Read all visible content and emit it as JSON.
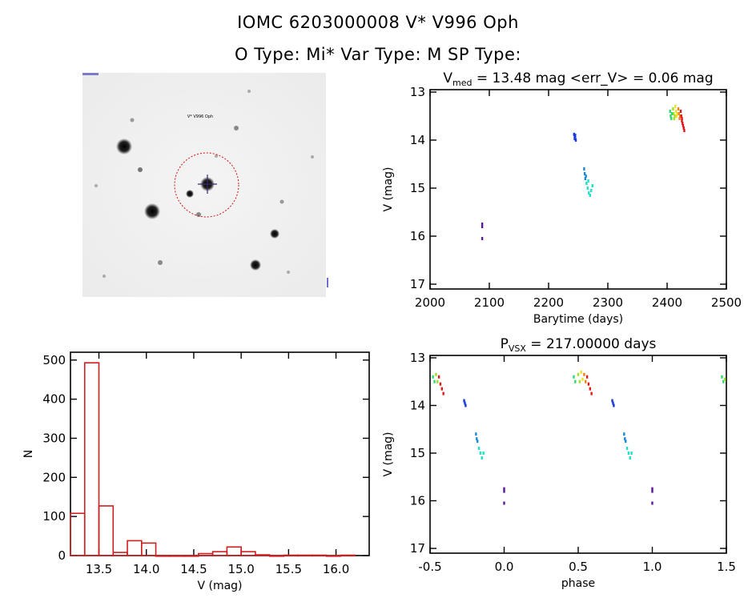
{
  "header": {
    "line1": "IOMC 6203000008     V* V996 Oph",
    "line2": "O Type: Mi*   Var Type: M   SP Type:"
  },
  "thumbnail": {
    "label_target": "V* V996 Oph",
    "circle_color": "#d01010"
  },
  "chart_data": [
    {
      "id": "lightcurve",
      "type": "scatter",
      "title_prefix": "V",
      "title_sub": "med",
      "title_rest": " = 13.48 mag <err_V> = 0.06 mag",
      "xlabel": "Barytime (days)",
      "ylabel": "V (mag)",
      "xlim": [
        2000,
        2500
      ],
      "ylim": [
        17.1,
        12.95
      ],
      "y_inverted": true,
      "xticks": [
        2000,
        2100,
        2200,
        2300,
        2400,
        2500
      ],
      "yticks": [
        13,
        14,
        15,
        16,
        17
      ],
      "groups": [
        {
          "color": "#5a1a9a",
          "points": [
            [
              2088,
              15.75
            ],
            [
              2088,
              15.8
            ],
            [
              2088,
              16.05
            ]
          ]
        },
        {
          "color": "#1a3ad8",
          "points": [
            [
              2243,
              13.88
            ],
            [
              2244,
              13.92
            ],
            [
              2245,
              13.95
            ],
            [
              2246,
              14.0
            ],
            [
              2244,
              13.97
            ],
            [
              2245,
              13.9
            ]
          ]
        },
        {
          "color": "#1a8ad8",
          "points": [
            [
              2260,
              14.6
            ],
            [
              2261,
              14.7
            ],
            [
              2262,
              14.8
            ],
            [
              2263,
              14.75
            ]
          ]
        },
        {
          "color": "#20e0c8",
          "points": [
            [
              2264,
              14.9
            ],
            [
              2266,
              15.0
            ],
            [
              2268,
              15.1
            ],
            [
              2270,
              15.15
            ],
            [
              2272,
              15.05
            ],
            [
              2274,
              14.95
            ],
            [
              2267,
              14.85
            ]
          ]
        },
        {
          "color": "#30d870",
          "points": [
            [
              2405,
              13.4
            ],
            [
              2406,
              13.5
            ],
            [
              2407,
              13.55
            ],
            [
              2408,
              13.45
            ]
          ]
        },
        {
          "color": "#a0e020",
          "points": [
            [
              2410,
              13.35
            ],
            [
              2411,
              13.45
            ],
            [
              2412,
              13.55
            ],
            [
              2413,
              13.5
            ]
          ]
        },
        {
          "color": "#f0e020",
          "points": [
            [
              2414,
              13.3
            ],
            [
              2415,
              13.4
            ],
            [
              2416,
              13.5
            ],
            [
              2417,
              13.45
            ]
          ]
        },
        {
          "color": "#f08020",
          "points": [
            [
              2419,
              13.35
            ],
            [
              2420,
              13.45
            ],
            [
              2421,
              13.55
            ],
            [
              2422,
              13.5
            ]
          ]
        },
        {
          "color": "#e01818",
          "points": [
            [
              2423,
              13.4
            ],
            [
              2424,
              13.5
            ],
            [
              2425,
              13.6
            ],
            [
              2426,
              13.65
            ],
            [
              2427,
              13.7
            ],
            [
              2428,
              13.75
            ],
            [
              2429,
              13.8
            ],
            [
              2425,
              13.55
            ]
          ]
        }
      ]
    },
    {
      "id": "histogram",
      "type": "bar",
      "xlabel": "V (mag)",
      "ylabel": "N",
      "xlim": [
        13.2,
        16.35
      ],
      "ylim": [
        0,
        520
      ],
      "xticks": [
        13.5,
        14.0,
        14.5,
        15.0,
        15.5,
        16.0
      ],
      "yticks": [
        0,
        100,
        200,
        300,
        400,
        500
      ],
      "bin_width": 0.15,
      "color": "#cc2020",
      "bins": [
        {
          "left": 13.2,
          "count": 108
        },
        {
          "left": 13.35,
          "count": 493
        },
        {
          "left": 13.5,
          "count": 127
        },
        {
          "left": 13.65,
          "count": 8
        },
        {
          "left": 13.8,
          "count": 38
        },
        {
          "left": 13.95,
          "count": 32
        },
        {
          "left": 14.1,
          "count": 0
        },
        {
          "left": 14.25,
          "count": 0
        },
        {
          "left": 14.4,
          "count": 0
        },
        {
          "left": 14.55,
          "count": 5
        },
        {
          "left": 14.7,
          "count": 10
        },
        {
          "left": 14.85,
          "count": 22
        },
        {
          "left": 15.0,
          "count": 10
        },
        {
          "left": 15.15,
          "count": 2
        },
        {
          "left": 15.3,
          "count": 0
        },
        {
          "left": 15.45,
          "count": 1
        },
        {
          "left": 15.6,
          "count": 1
        },
        {
          "left": 15.75,
          "count": 1
        },
        {
          "left": 15.9,
          "count": 0
        },
        {
          "left": 16.05,
          "count": 1
        }
      ]
    },
    {
      "id": "phased",
      "type": "scatter",
      "title_prefix": "P",
      "title_sub": "VSX",
      "title_rest": " = 217.00000 days",
      "xlabel": "phase",
      "ylabel": "V (mag)",
      "xlim": [
        -0.5,
        1.5
      ],
      "ylim": [
        17.1,
        12.95
      ],
      "y_inverted": true,
      "xticks": [
        -0.5,
        0.0,
        0.5,
        1.0,
        1.5
      ],
      "yticks": [
        13,
        14,
        15,
        16,
        17
      ],
      "groups": [
        {
          "color": "#5a1a9a",
          "points": [
            [
              0.0,
              15.75
            ],
            [
              0.0,
              15.8
            ],
            [
              0.0,
              16.05
            ],
            [
              1.0,
              15.75
            ],
            [
              1.0,
              15.8
            ],
            [
              1.0,
              16.05
            ]
          ]
        },
        {
          "color": "#1a3ad8",
          "points": [
            [
              -0.27,
              13.9
            ],
            [
              -0.265,
              13.95
            ],
            [
              -0.26,
              14.0
            ],
            [
              0.73,
              13.9
            ],
            [
              0.735,
              13.95
            ],
            [
              0.74,
              14.0
            ]
          ]
        },
        {
          "color": "#1a8ad8",
          "points": [
            [
              -0.19,
              14.6
            ],
            [
              -0.185,
              14.7
            ],
            [
              -0.18,
              14.75
            ],
            [
              0.81,
              14.6
            ],
            [
              0.815,
              14.7
            ],
            [
              0.82,
              14.75
            ]
          ]
        },
        {
          "color": "#20e0c8",
          "points": [
            [
              -0.17,
              14.9
            ],
            [
              -0.16,
              15.0
            ],
            [
              -0.15,
              15.1
            ],
            [
              -0.14,
              15.0
            ],
            [
              0.83,
              14.9
            ],
            [
              0.84,
              15.0
            ],
            [
              0.85,
              15.1
            ],
            [
              0.86,
              15.0
            ]
          ]
        },
        {
          "color": "#30d870",
          "points": [
            [
              -0.48,
              13.4
            ],
            [
              -0.47,
              13.5
            ],
            [
              0.47,
              13.4
            ],
            [
              0.48,
              13.5
            ],
            [
              1.47,
              13.4
            ],
            [
              1.48,
              13.5
            ]
          ]
        },
        {
          "color": "#a0e020",
          "points": [
            [
              -0.46,
              13.35
            ],
            [
              -0.45,
              13.5
            ],
            [
              0.5,
              13.35
            ],
            [
              0.51,
              13.5
            ],
            [
              1.49,
              13.45
            ]
          ]
        },
        {
          "color": "#f0e020",
          "points": [
            [
              0.52,
              13.3
            ],
            [
              0.53,
              13.45
            ]
          ]
        },
        {
          "color": "#f08020",
          "points": [
            [
              0.54,
              13.35
            ],
            [
              0.55,
              13.5
            ]
          ]
        },
        {
          "color": "#e01818",
          "points": [
            [
              -0.44,
              13.4
            ],
            [
              -0.43,
              13.55
            ],
            [
              -0.42,
              13.65
            ],
            [
              -0.41,
              13.75
            ],
            [
              0.56,
              13.4
            ],
            [
              0.57,
              13.55
            ],
            [
              0.58,
              13.65
            ],
            [
              0.59,
              13.75
            ]
          ]
        }
      ]
    }
  ]
}
